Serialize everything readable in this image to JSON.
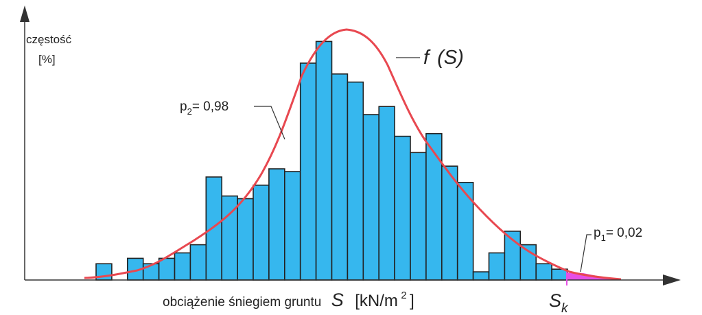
{
  "chart_data": {
    "type": "bar",
    "ylabel_line1": "częstość",
    "ylabel_line2": "[%]",
    "xlabel": "obciążenie śniegiem gruntu",
    "xlabel_symbol": "S",
    "xlabel_unit": "[kN/m",
    "xlabel_unit_exp": "2",
    "xlabel_unit_close": "]",
    "curve_label": {
      "f": "f",
      "arg": "(S)"
    },
    "p2_label": {
      "p": "p",
      "sub": "2",
      "value": "= 0,98"
    },
    "p1_label": {
      "p": "p",
      "sub": "1",
      "value": "= 0,02"
    },
    "sk_label": {
      "s": "S",
      "sub": "k"
    },
    "bars": [
      6,
      0,
      8,
      6,
      8,
      10,
      13,
      38,
      31,
      30,
      35,
      41,
      40,
      80,
      88,
      76,
      73,
      61,
      64,
      53,
      47,
      54,
      42,
      36,
      3,
      10,
      18,
      13,
      6,
      4
    ],
    "bar_color": "#36b7ee",
    "bar_edge_color": "#222222",
    "curve_color": "#e84850",
    "tail_color": "#e64fe6"
  }
}
